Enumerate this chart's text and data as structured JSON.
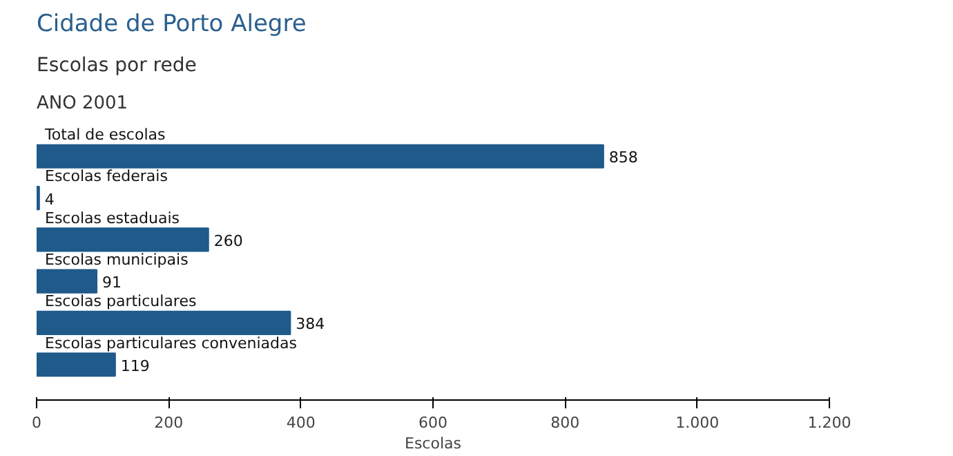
{
  "chart_data": {
    "type": "bar",
    "orientation": "horizontal",
    "title": "Cidade de Porto Alegre",
    "subtitle": "Escolas por rede",
    "annotations": [
      "ANO 2001"
    ],
    "xlabel": "Escolas",
    "categories": [
      "Total de escolas",
      "Escolas federais",
      "Escolas estaduais",
      "Escolas municipais",
      "Escolas particulares",
      "Escolas particulares conveniadas"
    ],
    "values": [
      858,
      4,
      260,
      91,
      384,
      119
    ],
    "color": "#1f5a8a",
    "xlim": [
      0,
      1200
    ],
    "xticks": [
      0,
      200,
      400,
      600,
      800,
      {
        "value": 1000,
        "label": "1.000"
      },
      {
        "value": 1200,
        "label": "1.200"
      }
    ],
    "data_labels": true,
    "grid": false
  }
}
